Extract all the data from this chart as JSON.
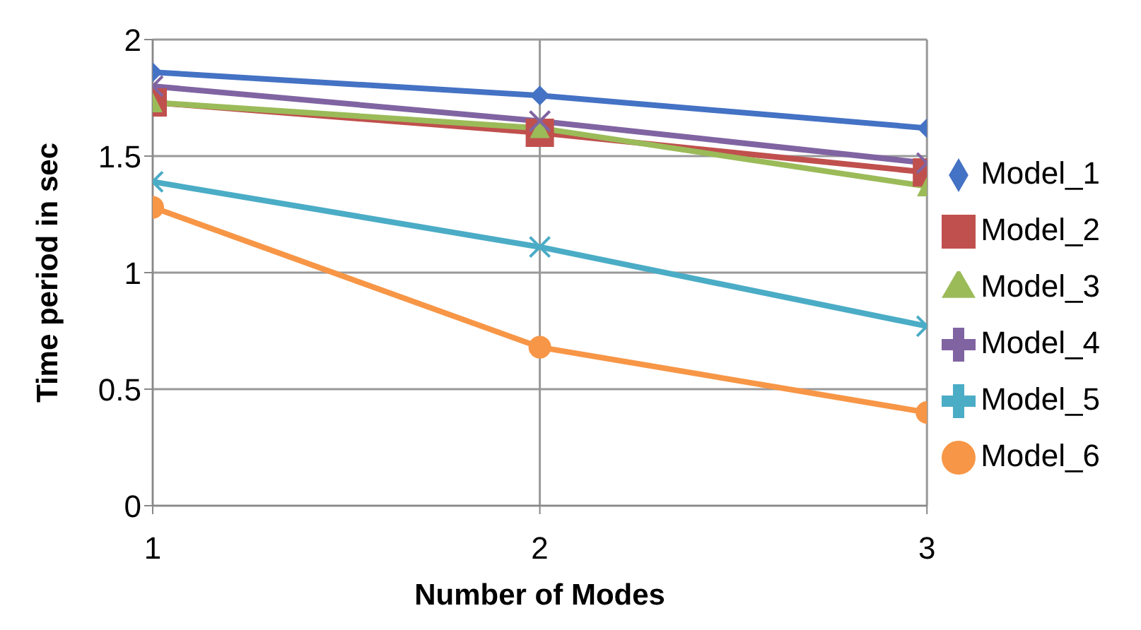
{
  "chart_data": {
    "type": "line",
    "xlabel": "Number of Modes",
    "ylabel": "Time period in sec",
    "x": [
      1,
      2,
      3
    ],
    "xlim": [
      1,
      3
    ],
    "xticks": [
      1,
      2,
      3
    ],
    "ylim": [
      0,
      2
    ],
    "yticks": [
      0,
      0.5,
      1,
      1.5,
      2
    ],
    "grid": true,
    "legend": "right",
    "line_style": "solid",
    "series": [
      {
        "name": "Model_1",
        "color": "#4472c4",
        "marker": "diamond",
        "values": [
          1.86,
          1.76,
          1.62
        ]
      },
      {
        "name": "Model_2",
        "color": "#c0504d",
        "marker": "square",
        "values": [
          1.73,
          1.6,
          1.43
        ]
      },
      {
        "name": "Model_3",
        "color": "#9bbb59",
        "marker": "triangle",
        "values": [
          1.73,
          1.62,
          1.37
        ]
      },
      {
        "name": "Model_4",
        "color": "#8064a2",
        "marker": "cross",
        "values": [
          1.8,
          1.65,
          1.47
        ]
      },
      {
        "name": "Model_5",
        "color": "#4bacc6",
        "marker": "cross",
        "values": [
          1.39,
          1.11,
          0.77
        ]
      },
      {
        "name": "Model_6",
        "color": "#f79646",
        "marker": "circle",
        "values": [
          1.28,
          0.68,
          0.4
        ]
      }
    ]
  }
}
